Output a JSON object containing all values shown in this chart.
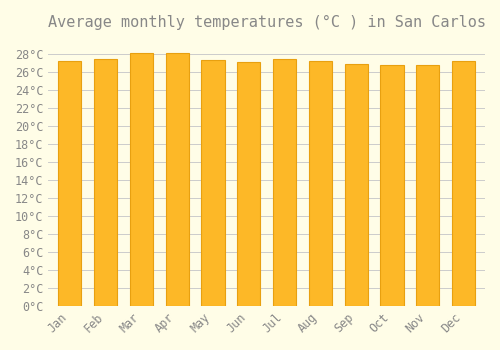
{
  "title": "Average monthly temperatures (°C ) in San Carlos",
  "months": [
    "Jan",
    "Feb",
    "Mar",
    "Apr",
    "May",
    "Jun",
    "Jul",
    "Aug",
    "Sep",
    "Oct",
    "Nov",
    "Dec"
  ],
  "values": [
    27.3,
    27.5,
    28.1,
    28.1,
    27.4,
    27.2,
    27.5,
    27.3,
    26.9,
    26.8,
    26.8,
    27.3
  ],
  "bar_color_main": "#FDB827",
  "bar_color_edge": "#E8A010",
  "background_color": "#FFFDE7",
  "grid_color": "#CCCCCC",
  "text_color": "#888888",
  "ylim": [
    0,
    29.5
  ],
  "ytick_step": 2,
  "title_fontsize": 11,
  "tick_fontsize": 8.5
}
